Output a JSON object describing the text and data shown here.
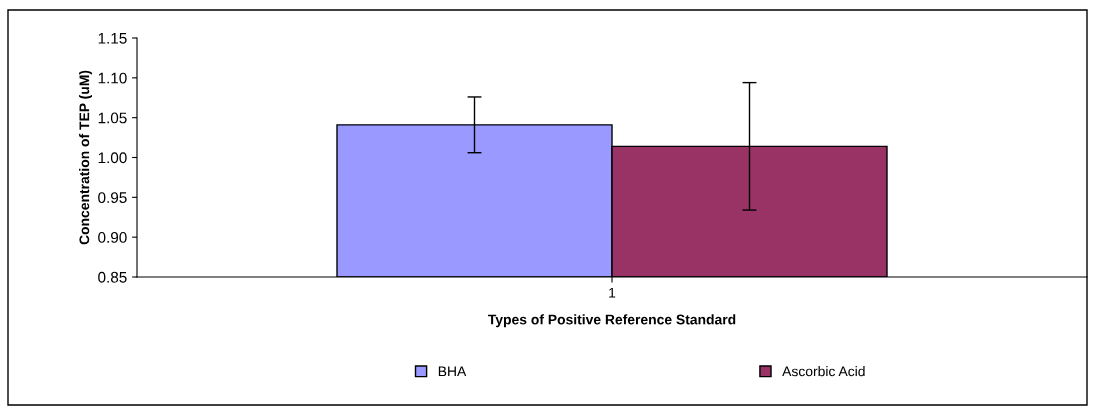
{
  "chart_data": {
    "type": "bar",
    "xlabel": "Types of Positive Reference Standard",
    "ylabel": "Concentration of TEP (uM)",
    "categories": [
      "1"
    ],
    "series": [
      {
        "name": "BHA",
        "color": "#9999ff",
        "values": [
          1.041
        ],
        "errors": [
          0.035
        ]
      },
      {
        "name": "Ascorbic Acid",
        "color": "#993366",
        "values": [
          1.014
        ],
        "errors": [
          0.08
        ]
      }
    ],
    "ylim": [
      0.85,
      1.15
    ],
    "yticks": [
      0.85,
      {
        "value": 0.9,
        "label": "0.90"
      },
      0.95,
      {
        "value": 1.0,
        "label": "1.00"
      },
      1.05,
      {
        "value": 1.1,
        "label": "1.10"
      },
      1.15
    ],
    "grid": false,
    "legend": "bottom"
  }
}
